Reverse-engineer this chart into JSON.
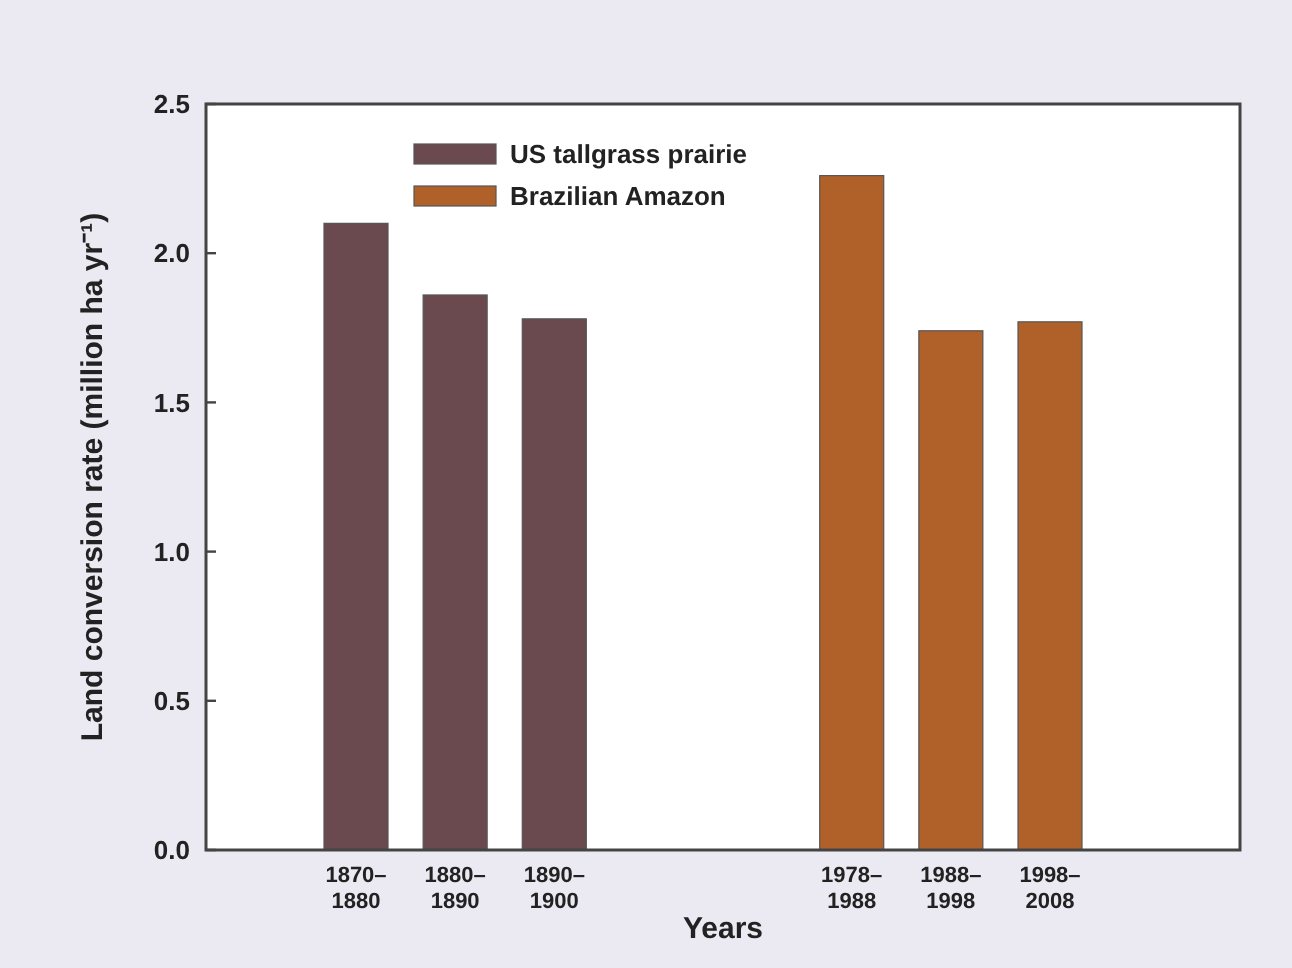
{
  "chart_data": {
    "type": "bar",
    "xlabel": "Years",
    "ylabel": "Land conversion rate (million ha yr⁻¹)",
    "categories": [
      "1870–1880",
      "1880–1890",
      "1890–1900",
      null,
      null,
      "1978–1988",
      "1988–1998",
      "1998–2008"
    ],
    "series": [
      {
        "name": "US tallgrass prairie",
        "color": "#6b4a4f",
        "values": [
          2.1,
          1.86,
          1.78,
          null,
          null,
          null,
          null,
          null
        ]
      },
      {
        "name": "Brazilian Amazon",
        "color": "#b0612a",
        "values": [
          null,
          null,
          null,
          null,
          null,
          2.26,
          1.74,
          1.77
        ]
      }
    ],
    "ylim": [
      0,
      2.5
    ],
    "yticks": [
      {
        "value": 0,
        "label": "0.0"
      },
      {
        "value": 0.5,
        "label": "0.5"
      },
      {
        "value": 1,
        "label": "1.0"
      },
      {
        "value": 1.5,
        "label": "1.5"
      },
      {
        "value": 2,
        "label": "2.0"
      },
      {
        "value": 2.5,
        "label": "2.5"
      }
    ],
    "grid": false,
    "legend": "top left"
  }
}
